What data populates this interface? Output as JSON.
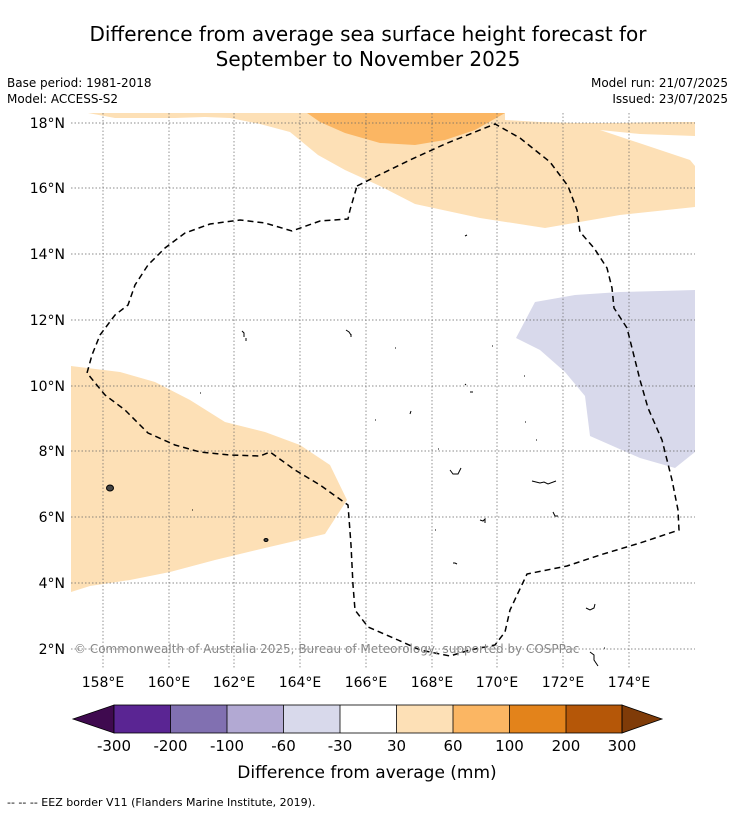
{
  "title": {
    "line1": "Difference from average sea surface height forecast for",
    "line2": "September to November 2025"
  },
  "meta_left": {
    "base_period": "Base period: 1981-2018",
    "model": "Model: ACCESS-S2"
  },
  "meta_right": {
    "model_run": "Model run: 21/07/2025",
    "issued": "Issued: 23/07/2025"
  },
  "map": {
    "lat_labels": [
      "18°N",
      "16°N",
      "14°N",
      "12°N",
      "10°N",
      "8°N",
      "6°N",
      "4°N",
      "2°N"
    ],
    "lon_labels": [
      "158°E",
      "160°E",
      "162°E",
      "164°E",
      "166°E",
      "168°E",
      "170°E",
      "172°E",
      "174°E"
    ],
    "copyright": "© Commonwealth of Australia 2025, Bureau of Meteorology, supported by COSPPac",
    "colors": {
      "pos_30_60": "#fde0b6",
      "pos_60_100": "#fbb663",
      "neg_30_60": "#d8d9eb",
      "land": "#ffffff"
    }
  },
  "colorbar": {
    "colors": [
      "#3f0a4f",
      "#5a2593",
      "#8170b1",
      "#b2a9d3",
      "#d8d9eb",
      "#ffffff",
      "#fde0b6",
      "#fbb663",
      "#e3831b",
      "#b55708",
      "#7f3b08"
    ],
    "tick_labels": [
      "-300",
      "-200",
      "-100",
      "-60",
      "-30",
      "30",
      "60",
      "100",
      "200",
      "300"
    ],
    "label": "Difference from average (mm)"
  },
  "footnote": "-- -- -- EEZ border V11 (Flanders Marine Institute, 2019)."
}
